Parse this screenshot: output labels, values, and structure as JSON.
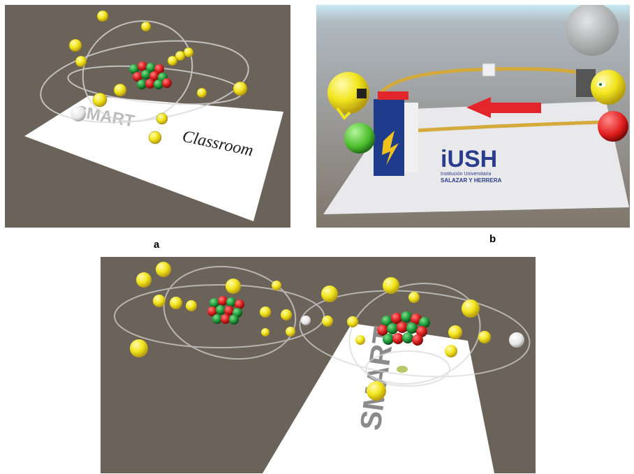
{
  "captions": {
    "a": "a",
    "b": "b"
  },
  "panel_a": {
    "logo_smart": "SMART",
    "logo_classroom": "Classroom"
  },
  "panel_b": {
    "logo_mark": "iUSH",
    "logo_line1": "Institución Universitaria",
    "logo_line2": "SALAZAR Y HERRERA"
  },
  "panel_c": {
    "logo_smart": "SMART"
  },
  "colors": {
    "scene_background": "#6b635a",
    "electron": "#f2e51c",
    "proton": "#d81e1e",
    "neutron": "#1f9a3a",
    "wire": "#d4aa3c",
    "arrow": "#e3262c",
    "battery_blue": "#1f3b8c"
  }
}
